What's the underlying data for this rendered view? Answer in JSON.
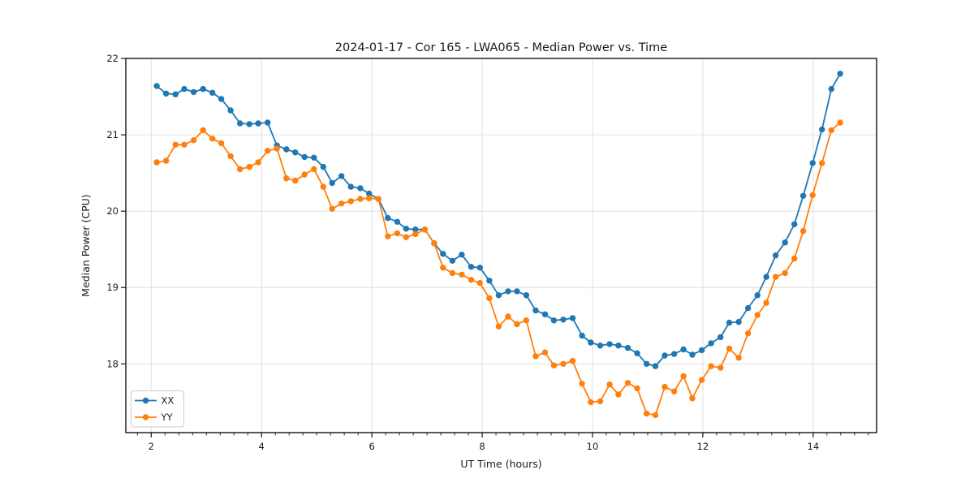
{
  "chart_data": {
    "type": "line",
    "title": "2024-01-17 - Cor 165 - LWA065 - Median Power vs. Time",
    "xlabel": "UT Time (hours)",
    "ylabel": "Median Power (CPU)",
    "axes": {
      "xlim": [
        1.54,
        15.15
      ],
      "ylim": [
        17.1,
        22.0
      ],
      "x_major_ticks": [
        2,
        4,
        6,
        8,
        10,
        12,
        14
      ],
      "x_minor_step": 0.25,
      "y_major_ticks": [
        18,
        19,
        20,
        21,
        22
      ],
      "grid": true,
      "grid_color": "#dddddd",
      "spine_color": "#000000"
    },
    "legend": {
      "position": "lower-left",
      "entries": [
        {
          "label": "XX",
          "color": "#1f77b4"
        },
        {
          "label": "YY",
          "color": "#ff7f0e"
        }
      ]
    },
    "marker": "circle",
    "x": [
      2.1,
      2.27,
      2.44,
      2.6,
      2.77,
      2.94,
      3.11,
      3.27,
      3.44,
      3.61,
      3.78,
      3.94,
      4.11,
      4.28,
      4.45,
      4.61,
      4.78,
      4.95,
      5.12,
      5.28,
      5.45,
      5.62,
      5.79,
      5.95,
      6.12,
      6.29,
      6.46,
      6.62,
      6.79,
      6.96,
      7.13,
      7.29,
      7.46,
      7.63,
      7.8,
      7.96,
      8.13,
      8.3,
      8.47,
      8.63,
      8.8,
      8.97,
      9.14,
      9.3,
      9.47,
      9.64,
      9.81,
      9.97,
      10.14,
      10.31,
      10.47,
      10.64,
      10.81,
      10.98,
      11.14,
      11.31,
      11.48,
      11.65,
      11.81,
      11.98,
      12.15,
      12.32,
      12.48,
      12.65,
      12.82,
      12.99,
      13.15,
      13.32,
      13.49,
      13.66,
      13.82,
      13.99,
      14.16,
      14.33,
      14.49
    ],
    "series": [
      {
        "name": "XX",
        "color": "#1f77b4",
        "values": [
          21.64,
          21.54,
          21.53,
          21.6,
          21.56,
          21.6,
          21.55,
          21.47,
          21.32,
          21.15,
          21.14,
          21.15,
          21.16,
          20.86,
          20.81,
          20.77,
          20.71,
          20.7,
          20.58,
          20.37,
          20.46,
          20.32,
          20.3,
          20.23,
          20.16,
          19.91,
          19.86,
          19.77,
          19.76,
          19.76,
          19.58,
          19.44,
          19.35,
          19.43,
          19.27,
          19.26,
          19.09,
          18.9,
          18.95,
          18.95,
          18.9,
          18.7,
          18.65,
          18.57,
          18.58,
          18.6,
          18.37,
          18.28,
          18.24,
          18.26,
          18.24,
          18.21,
          18.14,
          18.0,
          17.97,
          18.11,
          18.13,
          18.19,
          18.12,
          18.18,
          18.27,
          18.35,
          18.54,
          18.55,
          18.73,
          18.9,
          19.14,
          19.42,
          19.59,
          19.83,
          20.2,
          20.63,
          21.07,
          21.6,
          21.8
        ]
      },
      {
        "name": "YY",
        "color": "#ff7f0e",
        "values": [
          20.64,
          20.66,
          20.87,
          20.87,
          20.93,
          21.06,
          20.95,
          20.89,
          20.72,
          20.55,
          20.58,
          20.64,
          20.79,
          20.82,
          20.43,
          20.4,
          20.48,
          20.55,
          20.32,
          20.03,
          20.1,
          20.13,
          20.16,
          20.17,
          20.16,
          19.67,
          19.71,
          19.66,
          19.7,
          19.76,
          19.58,
          19.26,
          19.19,
          19.17,
          19.1,
          19.06,
          18.86,
          18.49,
          18.62,
          18.52,
          18.57,
          18.1,
          18.15,
          17.98,
          18.0,
          18.04,
          17.74,
          17.5,
          17.51,
          17.73,
          17.6,
          17.75,
          17.68,
          17.35,
          17.33,
          17.7,
          17.64,
          17.84,
          17.55,
          17.79,
          17.97,
          17.95,
          18.2,
          18.08,
          18.4,
          18.64,
          18.8,
          19.14,
          19.19,
          19.38,
          19.74,
          20.21,
          20.63,
          21.06,
          21.16
        ]
      }
    ]
  }
}
